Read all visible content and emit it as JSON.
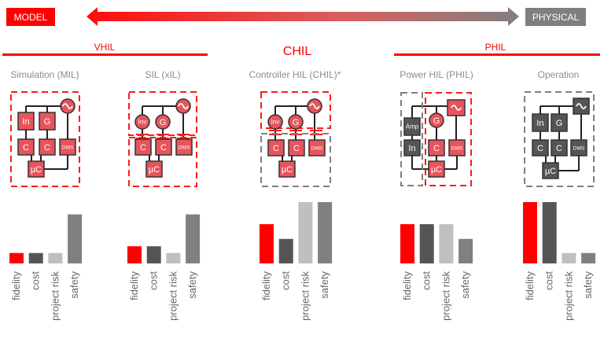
{
  "scale": {
    "left_label": "MODEL",
    "right_label": "PHYSICAL",
    "left_color": "#ff0000",
    "right_color": "#7f7f7f"
  },
  "groups": {
    "vhil": "VHIL",
    "chil": "CHIL",
    "phil": "PHIL",
    "color": "#ff0000"
  },
  "colors": {
    "simulated": "#e8545c",
    "physical": "#555555",
    "boundary_red": "#ff1a1a",
    "boundary_gray": "#7f7f7f"
  },
  "metrics": [
    "fidelity",
    "cost",
    "project risk",
    "safety"
  ],
  "metric_colors": [
    "#ff0000",
    "#555555",
    "#bfbfbf",
    "#808080"
  ],
  "panels": [
    {
      "title": "Simulation (MIL)",
      "boundaries": [
        "red"
      ],
      "components": {
        "src": {
          "label": "~",
          "color": "simulated"
        },
        "a": {
          "label": "In",
          "color": "simulated"
        },
        "b": {
          "label": "G",
          "color": "simulated"
        },
        "c1": {
          "label": "C",
          "color": "simulated"
        },
        "c2": {
          "label": "C",
          "color": "simulated"
        },
        "dms": {
          "label": "DMS",
          "color": "simulated"
        },
        "uc": {
          "label": "µC",
          "color": "simulated"
        }
      },
      "levels": [
        0.17,
        0.17,
        0.17,
        0.8
      ]
    },
    {
      "title": "SIL (xIL)",
      "boundaries": [
        "red",
        "red"
      ],
      "components": {
        "src": {
          "label": "~",
          "color": "simulated"
        },
        "a": {
          "label": "Inv",
          "color": "simulated"
        },
        "b": {
          "label": "G",
          "color": "simulated"
        },
        "c1": {
          "label": "C",
          "color": "simulated"
        },
        "c2": {
          "label": "C",
          "color": "simulated"
        },
        "dms": {
          "label": "DMS",
          "color": "simulated"
        },
        "uc": {
          "label": "µC",
          "color": "simulated"
        }
      },
      "levels": [
        0.28,
        0.28,
        0.17,
        0.8
      ]
    },
    {
      "title": "Controller HIL (CHIL)*",
      "boundaries": [
        "red",
        "gray"
      ],
      "components": {
        "src": {
          "label": "~",
          "color": "simulated"
        },
        "a": {
          "label": "Inv",
          "color": "simulated"
        },
        "b": {
          "label": "G",
          "color": "simulated"
        },
        "c1": {
          "label": "C",
          "color": "simulated"
        },
        "c2": {
          "label": "C",
          "color": "simulated"
        },
        "dms": {
          "label": "DMS",
          "color": "simulated"
        },
        "uc": {
          "label": "µC",
          "color": "simulated"
        }
      },
      "levels": [
        0.64,
        0.4,
        1.0,
        1.0
      ]
    },
    {
      "title": "Power HIL (PHIL)",
      "boundaries": [
        "gray",
        "red"
      ],
      "components": {
        "src": {
          "label": "~",
          "color": "simulated"
        },
        "a": {
          "label": "Amp",
          "color": "physical"
        },
        "b": {
          "label": "G",
          "color": "simulated"
        },
        "c1": {
          "label": "In",
          "color": "physical"
        },
        "c2": {
          "label": "C",
          "color": "simulated"
        },
        "dms": {
          "label": "DMS",
          "color": "simulated"
        },
        "uc": {
          "label": "µC",
          "color": "simulated"
        }
      },
      "levels": [
        0.64,
        0.64,
        0.64,
        0.4
      ]
    },
    {
      "title": "Operation",
      "boundaries": [
        "gray"
      ],
      "components": {
        "src": {
          "label": "~",
          "color": "physical"
        },
        "a": {
          "label": "In",
          "color": "physical"
        },
        "b": {
          "label": "G",
          "color": "physical"
        },
        "c1": {
          "label": "C",
          "color": "physical"
        },
        "c2": {
          "label": "C",
          "color": "physical"
        },
        "dms": {
          "label": "DMS",
          "color": "physical"
        },
        "uc": {
          "label": "µC",
          "color": "physical"
        }
      },
      "levels": [
        1.0,
        1.0,
        0.17,
        0.17
      ]
    }
  ]
}
